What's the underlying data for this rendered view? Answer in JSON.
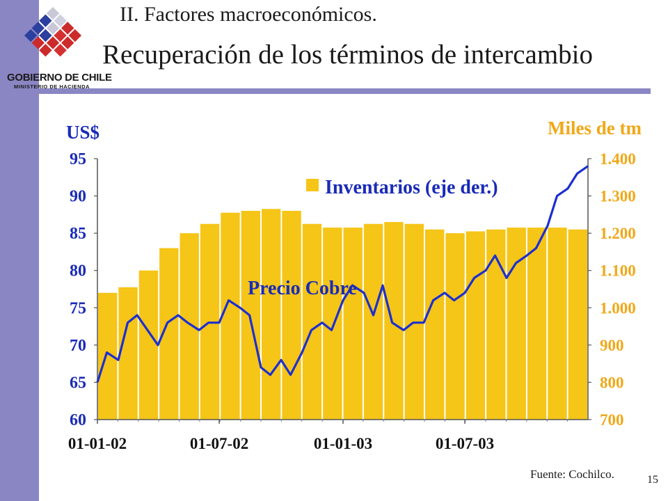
{
  "slide": {
    "section": "II. Factores macroeconómicos.",
    "title": "Recuperación de los términos de intercambio",
    "source": "Fuente: Cochilco.",
    "page_number": "15"
  },
  "logo": {
    "name": "GOBIERNO DE CHILE",
    "subtitle": "MINISTERIO DE HACIENDA"
  },
  "colors": {
    "sidebar": "#8a86c4",
    "bars": "#f5c518",
    "line": "#1c2fd0",
    "left_axis_text": "#1a2bb8",
    "right_axis_text": "#f0a818"
  },
  "chart_data": {
    "type": "bar+line",
    "left_axis_label": "US$",
    "right_axis_label": "Miles de tm",
    "ylim_left": [
      60,
      95
    ],
    "ylim_right": [
      700,
      1400
    ],
    "left_ticks": [
      "60",
      "65",
      "70",
      "75",
      "80",
      "85",
      "90",
      "95"
    ],
    "right_ticks": [
      "700",
      "800",
      "900",
      "1.000",
      "1.100",
      "1.200",
      "1.300",
      "1.400"
    ],
    "x_ticks": [
      "01-01-02",
      "01-07-02",
      "01-01-03",
      "01-07-03"
    ],
    "x_range": [
      "2002-01-01",
      "2003-12-31"
    ],
    "grid": false,
    "legend": {
      "label": "Inventarios (eje der.)",
      "position": "top-center"
    },
    "series": [
      {
        "name": "Inventarios (eje der.)",
        "axis": "right",
        "kind": "bar",
        "points": [
          [
            "2002-01-01",
            1040
          ],
          [
            "2002-02-01",
            1055
          ],
          [
            "2002-03-01",
            1100
          ],
          [
            "2002-04-01",
            1160
          ],
          [
            "2002-05-01",
            1200
          ],
          [
            "2002-06-01",
            1225
          ],
          [
            "2002-07-01",
            1255
          ],
          [
            "2002-08-01",
            1260
          ],
          [
            "2002-09-01",
            1265
          ],
          [
            "2002-10-01",
            1260
          ],
          [
            "2002-11-01",
            1225
          ],
          [
            "2002-12-01",
            1215
          ],
          [
            "2003-01-01",
            1215
          ],
          [
            "2003-02-01",
            1225
          ],
          [
            "2003-03-01",
            1230
          ],
          [
            "2003-04-01",
            1225
          ],
          [
            "2003-05-01",
            1210
          ],
          [
            "2003-06-01",
            1200
          ],
          [
            "2003-07-01",
            1205
          ],
          [
            "2003-08-01",
            1210
          ],
          [
            "2003-09-01",
            1215
          ],
          [
            "2003-10-01",
            1215
          ],
          [
            "2003-11-01",
            1215
          ],
          [
            "2003-12-01",
            1210
          ]
        ]
      },
      {
        "name": "Precio Cobre",
        "axis": "left",
        "kind": "line",
        "label_position": "center",
        "points": [
          [
            "2002-01-01",
            65
          ],
          [
            "2002-01-15",
            69
          ],
          [
            "2002-02-01",
            68
          ],
          [
            "2002-02-15",
            73
          ],
          [
            "2002-03-01",
            74
          ],
          [
            "2002-04-01",
            70
          ],
          [
            "2002-04-15",
            73
          ],
          [
            "2002-05-01",
            74
          ],
          [
            "2002-05-15",
            73
          ],
          [
            "2002-06-01",
            72
          ],
          [
            "2002-06-15",
            73
          ],
          [
            "2002-07-01",
            73
          ],
          [
            "2002-07-15",
            76
          ],
          [
            "2002-08-01",
            75
          ],
          [
            "2002-08-15",
            74
          ],
          [
            "2002-09-01",
            67
          ],
          [
            "2002-09-15",
            66
          ],
          [
            "2002-10-01",
            68
          ],
          [
            "2002-10-15",
            66
          ],
          [
            "2002-11-01",
            69
          ],
          [
            "2002-11-15",
            72
          ],
          [
            "2002-12-01",
            73
          ],
          [
            "2002-12-15",
            72
          ],
          [
            "2003-01-01",
            76
          ],
          [
            "2003-01-15",
            78
          ],
          [
            "2003-02-01",
            77
          ],
          [
            "2003-02-15",
            74
          ],
          [
            "2003-03-01",
            78
          ],
          [
            "2003-03-15",
            73
          ],
          [
            "2003-04-01",
            72
          ],
          [
            "2003-04-15",
            73
          ],
          [
            "2003-05-01",
            73
          ],
          [
            "2003-05-15",
            76
          ],
          [
            "2003-06-01",
            77
          ],
          [
            "2003-06-15",
            76
          ],
          [
            "2003-07-01",
            77
          ],
          [
            "2003-07-15",
            79
          ],
          [
            "2003-08-01",
            80
          ],
          [
            "2003-08-15",
            82
          ],
          [
            "2003-09-01",
            79
          ],
          [
            "2003-09-15",
            81
          ],
          [
            "2003-10-01",
            82
          ],
          [
            "2003-10-15",
            83
          ],
          [
            "2003-11-01",
            86
          ],
          [
            "2003-11-15",
            90
          ],
          [
            "2003-12-01",
            91
          ],
          [
            "2003-12-15",
            93
          ],
          [
            "2003-12-31",
            94
          ]
        ]
      }
    ]
  }
}
